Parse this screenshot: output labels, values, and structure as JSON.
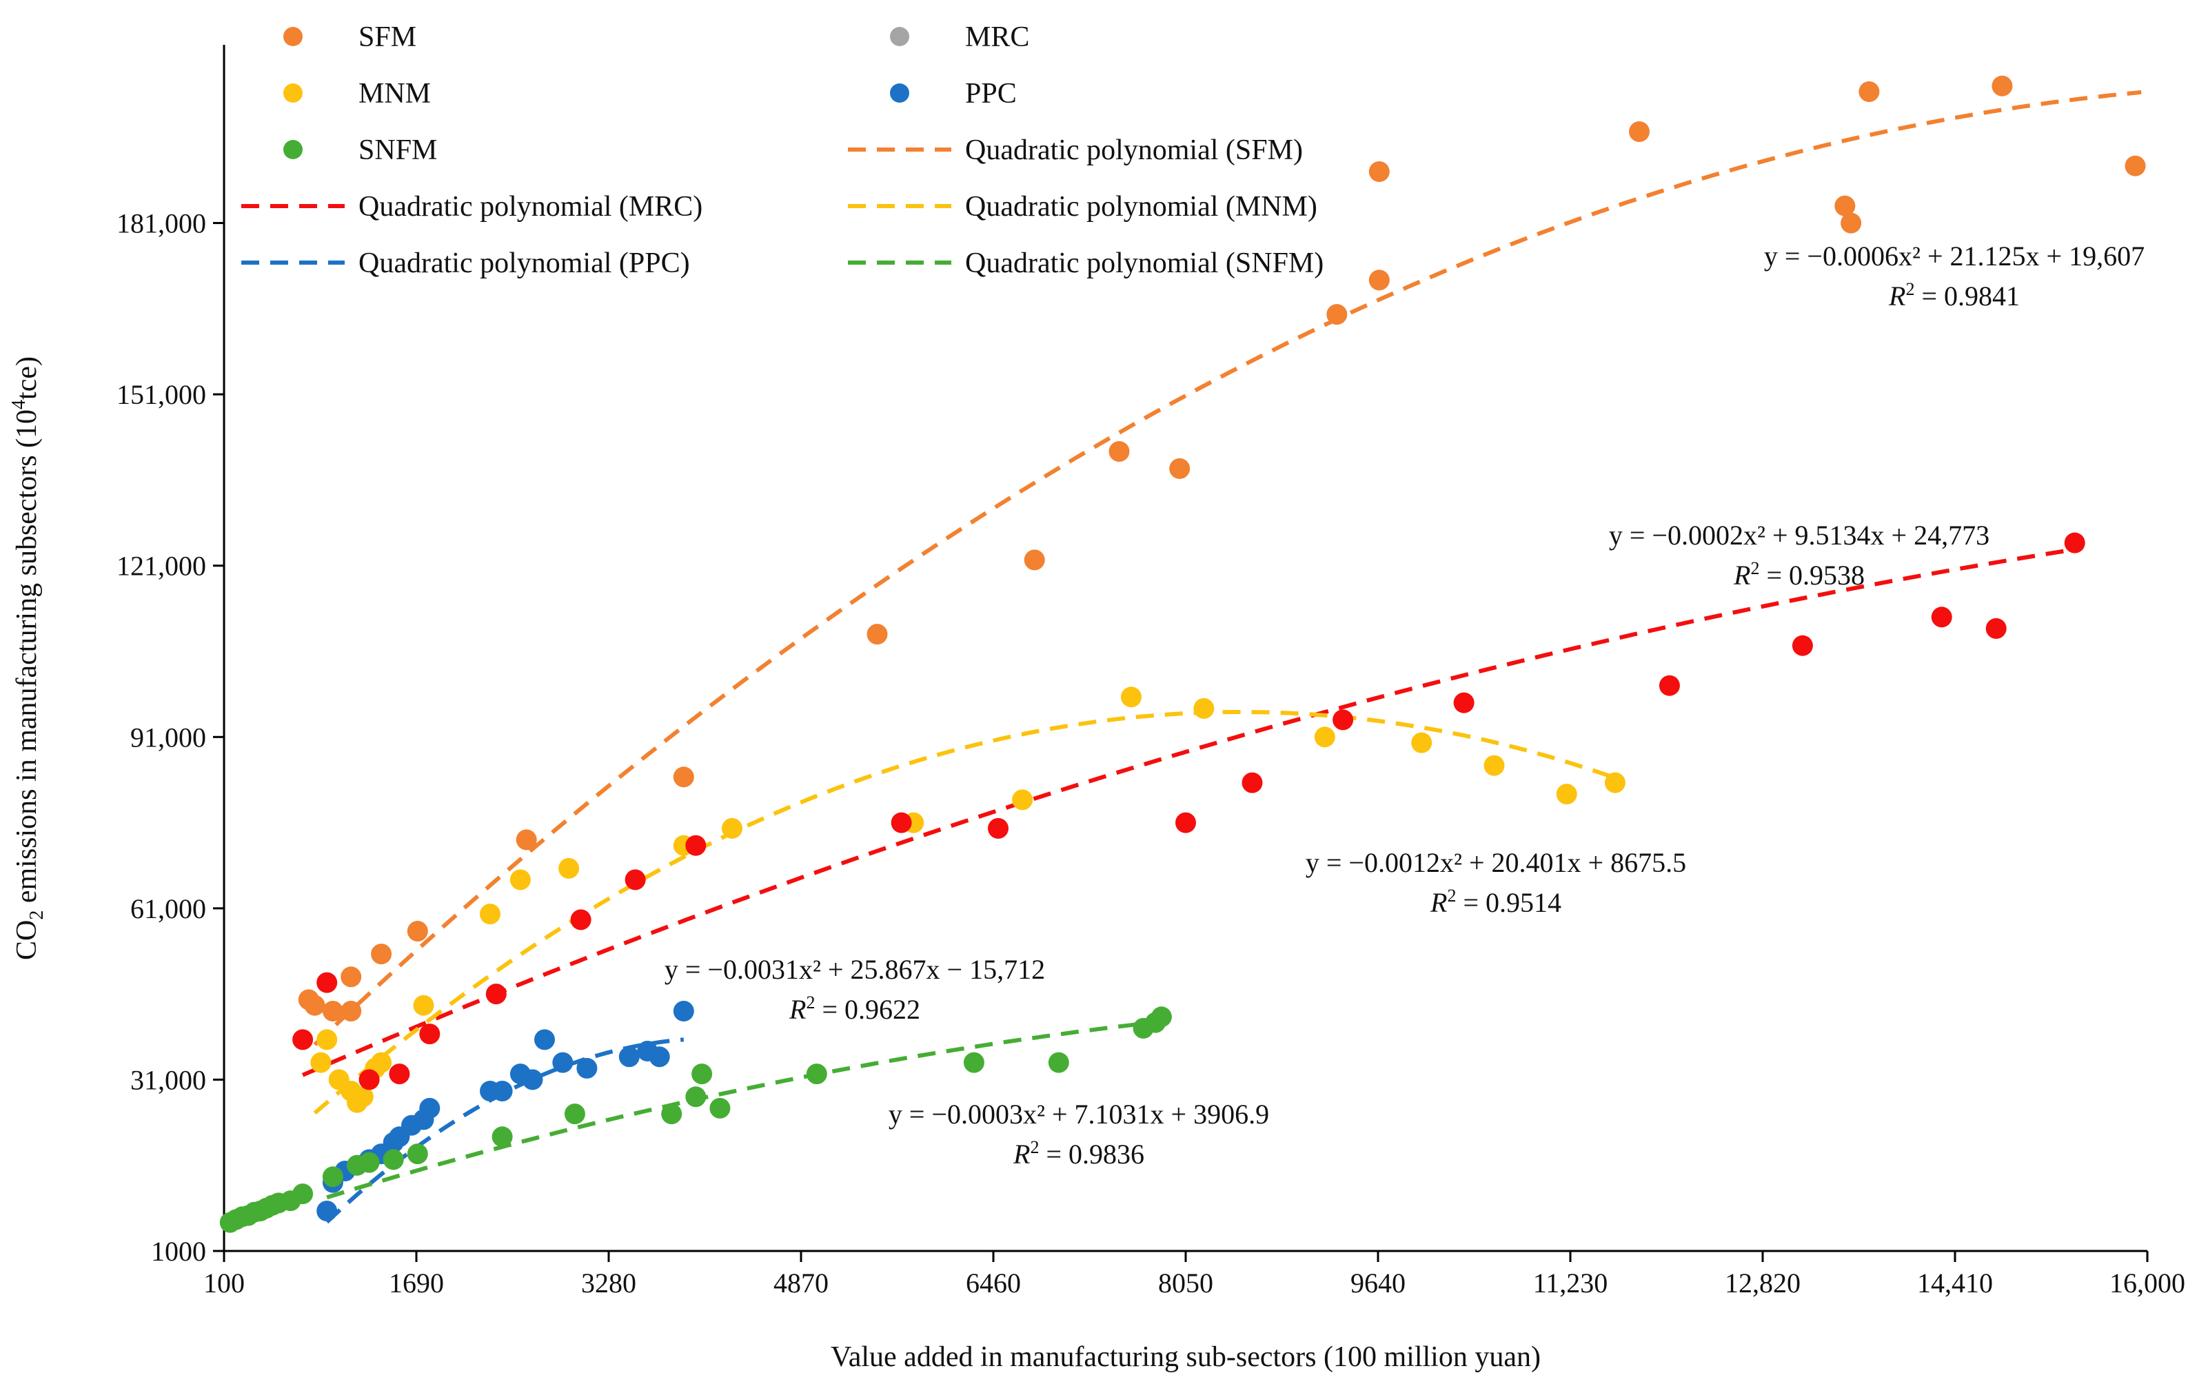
{
  "chart_data": {
    "type": "scatter",
    "title": "",
    "xlabel": "Value added in manufacturing sub-sectors (100 million yuan)",
    "ylabel_prefix": "CO",
    "ylabel_sub": "2",
    "ylabel_mid": " emissions in manufacturing subsectors (10",
    "ylabel_sup": "4",
    "ylabel_suffix": "tce)",
    "xlim": [
      100,
      16000
    ],
    "ylim": [
      1000,
      211000
    ],
    "x_ticks": [
      {
        "value": 100,
        "label": "100"
      },
      {
        "value": 1690,
        "label": "1690"
      },
      {
        "value": 3280,
        "label": "3280"
      },
      {
        "value": 4870,
        "label": "4870"
      },
      {
        "value": 6460,
        "label": "6460"
      },
      {
        "value": 8050,
        "label": "8050"
      },
      {
        "value": 9640,
        "label": "9640"
      },
      {
        "value": 11230,
        "label": "11,230"
      },
      {
        "value": 12820,
        "label": "12,820"
      },
      {
        "value": 14410,
        "label": "14,410"
      },
      {
        "value": 16000,
        "label": "16,000"
      }
    ],
    "y_ticks": [
      {
        "value": 1000,
        "label": "1000"
      },
      {
        "value": 31000,
        "label": "31,000"
      },
      {
        "value": 61000,
        "label": "61,000"
      },
      {
        "value": 91000,
        "label": "91,000"
      },
      {
        "value": 121000,
        "label": "121,000"
      },
      {
        "value": 151000,
        "label": "151,000"
      },
      {
        "value": 181000,
        "label": "181,000"
      }
    ],
    "grid": false,
    "legend_position": "top",
    "series": [
      {
        "name": "SFM",
        "color": "#f28130",
        "points": [
          [
            800,
            45000
          ],
          [
            850,
            44000
          ],
          [
            1000,
            43000
          ],
          [
            1150,
            49000
          ],
          [
            1150,
            43000
          ],
          [
            1400,
            53000
          ],
          [
            1700,
            57000
          ],
          [
            2600,
            73000
          ],
          [
            3900,
            84000
          ],
          [
            5500,
            109000
          ],
          [
            6800,
            122000
          ],
          [
            7500,
            141000
          ],
          [
            8000,
            138000
          ],
          [
            9300,
            165000
          ],
          [
            9650,
            171000
          ],
          [
            9650,
            190000
          ],
          [
            11800,
            197000
          ],
          [
            13500,
            184000
          ],
          [
            13550,
            181000
          ],
          [
            13700,
            204000
          ],
          [
            14800,
            205000
          ],
          [
            15900,
            191000
          ]
        ]
      },
      {
        "name": "MNM",
        "color": "#fcc20e",
        "points": [
          [
            900,
            34000
          ],
          [
            950,
            38000
          ],
          [
            1050,
            31000
          ],
          [
            1150,
            29000
          ],
          [
            1200,
            27000
          ],
          [
            1250,
            28000
          ],
          [
            1300,
            31000
          ],
          [
            1350,
            33000
          ],
          [
            1400,
            34000
          ],
          [
            1750,
            44000
          ],
          [
            2300,
            60000
          ],
          [
            2550,
            66000
          ],
          [
            2950,
            68000
          ],
          [
            3900,
            72000
          ],
          [
            4300,
            75000
          ],
          [
            5800,
            76000
          ],
          [
            6700,
            80000
          ],
          [
            7600,
            98000
          ],
          [
            8200,
            96000
          ],
          [
            9200,
            91000
          ],
          [
            10000,
            90000
          ],
          [
            10600,
            86000
          ],
          [
            11200,
            81000
          ],
          [
            11600,
            83000
          ]
        ]
      },
      {
        "name": "MRC",
        "color": "#f40e0e",
        "points": [
          [
            750,
            38000
          ],
          [
            950,
            48000
          ],
          [
            1300,
            31000
          ],
          [
            1550,
            32000
          ],
          [
            1800,
            39000
          ],
          [
            2350,
            46000
          ],
          [
            3050,
            59000
          ],
          [
            3500,
            66000
          ],
          [
            4000,
            72000
          ],
          [
            5700,
            76000
          ],
          [
            6500,
            75000
          ],
          [
            8050,
            76000
          ],
          [
            8600,
            83000
          ],
          [
            9350,
            94000
          ],
          [
            10350,
            97000
          ],
          [
            12050,
            100000
          ],
          [
            13150,
            107000
          ],
          [
            14300,
            112000
          ],
          [
            14750,
            110000
          ],
          [
            15400,
            125000
          ]
        ]
      },
      {
        "name": "PPC",
        "color": "#1d72c6",
        "points": [
          [
            950,
            8000
          ],
          [
            1000,
            13000
          ],
          [
            1100,
            15000
          ],
          [
            1200,
            16000
          ],
          [
            1300,
            17000
          ],
          [
            1400,
            18000
          ],
          [
            1500,
            20000
          ],
          [
            1550,
            21000
          ],
          [
            1650,
            23000
          ],
          [
            1750,
            24000
          ],
          [
            1800,
            26000
          ],
          [
            2300,
            29000
          ],
          [
            2400,
            29000
          ],
          [
            2550,
            32000
          ],
          [
            2650,
            31000
          ],
          [
            2750,
            38000
          ],
          [
            2900,
            34000
          ],
          [
            3100,
            33000
          ],
          [
            3450,
            35000
          ],
          [
            3600,
            36000
          ],
          [
            3700,
            35000
          ],
          [
            3900,
            43000
          ]
        ]
      },
      {
        "name": "SNFM",
        "color": "#46ad34",
        "points": [
          [
            150,
            6000
          ],
          [
            200,
            6500
          ],
          [
            250,
            7000
          ],
          [
            300,
            7200
          ],
          [
            350,
            7800
          ],
          [
            400,
            8000
          ],
          [
            450,
            8500
          ],
          [
            500,
            9000
          ],
          [
            550,
            9400
          ],
          [
            650,
            9800
          ],
          [
            750,
            11000
          ],
          [
            1000,
            14000
          ],
          [
            1200,
            16000
          ],
          [
            1300,
            16500
          ],
          [
            1500,
            17000
          ],
          [
            1700,
            18000
          ],
          [
            2400,
            21000
          ],
          [
            3000,
            25000
          ],
          [
            3800,
            25000
          ],
          [
            4000,
            28000
          ],
          [
            4050,
            32000
          ],
          [
            4200,
            26000
          ],
          [
            5000,
            32000
          ],
          [
            6300,
            34000
          ],
          [
            7000,
            34000
          ],
          [
            7700,
            40000
          ],
          [
            7800,
            41000
          ],
          [
            7850,
            42000
          ]
        ]
      }
    ],
    "fits": [
      {
        "name": "Quadratic polynomial (SFM)",
        "color": "#f28130",
        "a": -0.0006,
        "b": 21.125,
        "c": 19607,
        "x_range": [
          850,
          15950
        ],
        "equation": "y = −0.0006x² + 21.125x + 19,607",
        "r2": "0.9841"
      },
      {
        "name": "Quadratic polynomial (MRC)",
        "color": "#f40e0e",
        "a": -0.0002,
        "b": 9.5134,
        "c": 24773,
        "x_range": [
          750,
          15400
        ],
        "equation": "y = −0.0002x² + 9.5134x + 24,773",
        "r2": "0.9538"
      },
      {
        "name": "Quadratic polynomial (MNM)",
        "color": "#fcc20e",
        "a": -0.0012,
        "b": 20.401,
        "c": 8675.5,
        "x_range": [
          850,
          11600
        ],
        "equation": "y = −0.0012x² + 20.401x + 8675.5",
        "r2": "0.9514"
      },
      {
        "name": "Quadratic polynomial (PPC)",
        "color": "#1d72c6",
        "a": -0.0031,
        "b": 25.867,
        "c": -15712,
        "x_range": [
          950,
          3900
        ],
        "equation": "y = −0.0031x² + 25.867x − 15,712",
        "r2": "0.9622"
      },
      {
        "name": "Quadratic polynomial (SNFM)",
        "color": "#46ad34",
        "a": -0.0003,
        "b": 7.1031,
        "c": 3906.9,
        "x_range": [
          950,
          7850
        ],
        "equation": "y = −0.0003x² + 7.1031x + 3906.9",
        "r2": "0.9836"
      }
    ],
    "r2_label": "R",
    "r2_sup": "2",
    "r2_prefix": " = ",
    "legend": [
      {
        "label": "SFM",
        "kind": "marker",
        "color": "#f28130"
      },
      {
        "label": "MRC",
        "kind": "marker",
        "color": "#a5a5a5"
      },
      {
        "label": "MNM",
        "kind": "marker",
        "color": "#fcc20e"
      },
      {
        "label": "PPC",
        "kind": "marker",
        "color": "#1d72c6"
      },
      {
        "label": "SNFM",
        "kind": "marker",
        "color": "#46ad34"
      },
      {
        "label": "Quadratic polynomial (SFM)",
        "kind": "line",
        "color": "#f28130"
      },
      {
        "label": "Quadratic polynomial (MRC)",
        "kind": "line",
        "color": "#f40e0e"
      },
      {
        "label": "Quadratic polynomial (MNM)",
        "kind": "line",
        "color": "#fcc20e"
      },
      {
        "label": "Quadratic polynomial (PPC)",
        "kind": "line",
        "color": "#1d72c6"
      },
      {
        "label": "Quadratic polynomial (SNFM)",
        "kind": "line",
        "color": "#46ad34"
      }
    ]
  }
}
